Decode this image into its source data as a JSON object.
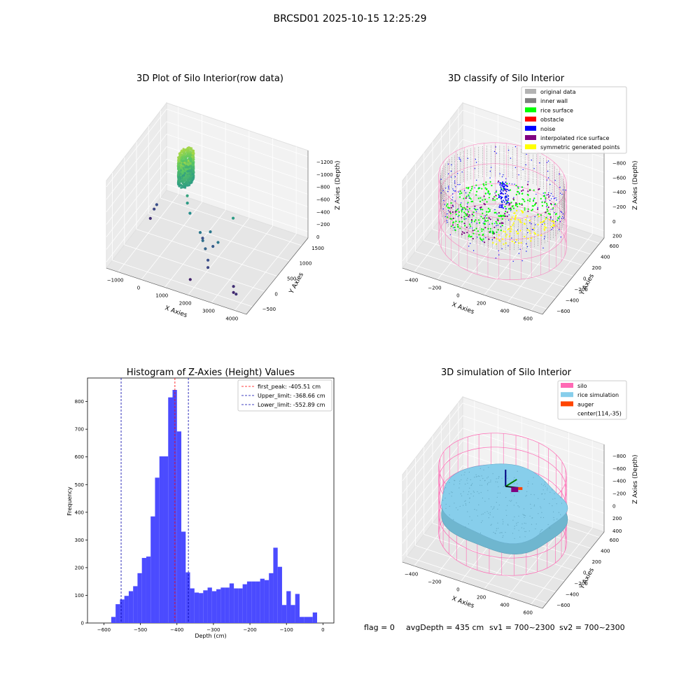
{
  "figure": {
    "suptitle": "BRCSD01 2025-10-15 12:25:29",
    "footer": {
      "flag": "flag = 0",
      "avg_depth": "avgDepth = 435 cm",
      "sv1": "sv1 = 700~2300",
      "sv2": "sv2 = 700~2300"
    }
  },
  "colors": {
    "hist_bar": "#4b4bff",
    "first_peak": "#ff0000",
    "limits": "#0000aa",
    "original": "#b3b3b3",
    "inner_wall": "#808080",
    "rice_surface": "#00ff00",
    "obstacle": "#ff0000",
    "noise": "#0000ff",
    "interpolated": "#800080",
    "symmetric": "#ffff00",
    "silo": "#ff69b4",
    "rice_sim": "#87ceeb",
    "auger": "#ff4500"
  },
  "chart_data": [
    {
      "type": "scatter",
      "projection": "3d",
      "title": "3D Plot of Silo Interior(row data)",
      "xlabel": "X Axies",
      "ylabel": "Y Axies",
      "zlabel": "Z Axies (Depth)",
      "x_ticks": [
        "−1000",
        "0",
        "1000",
        "2000",
        "3000",
        "4000"
      ],
      "y_ticks": [
        "−500",
        "0",
        "500",
        "1000",
        "1500"
      ],
      "z_ticks": [
        "0",
        "−200",
        "−400",
        "−600",
        "−800",
        "−1000",
        "−1200"
      ],
      "xlim": [
        -1200,
        4300
      ],
      "ylim": [
        -700,
        1700
      ],
      "zlim": [
        -1300,
        50
      ],
      "colormap": "viridis",
      "dense_cluster": "ring of several thousand points near x=0..500, y=800..1200, z=-200..-600",
      "outliers": [
        [
          600,
          700,
          -650
        ],
        [
          700,
          600,
          -700
        ],
        [
          900,
          500,
          -780
        ],
        [
          1500,
          300,
          -900
        ],
        [
          1700,
          200,
          -950
        ],
        [
          1900,
          100,
          -1000
        ],
        [
          2000,
          300,
          -1050
        ],
        [
          2100,
          0,
          -1100
        ],
        [
          2200,
          -100,
          -1150
        ],
        [
          1800,
          400,
          -900
        ],
        [
          2300,
          200,
          -900
        ],
        [
          1400,
          500,
          -1100
        ],
        [
          -900,
          900,
          -1150
        ],
        [
          -850,
          950,
          -1100
        ],
        [
          -950,
          800,
          -1250
        ],
        [
          3300,
          -200,
          -1250
        ],
        [
          3400,
          -300,
          -1280
        ],
        [
          3600,
          -400,
          -1230
        ],
        [
          1700,
          -300,
          -1300
        ],
        [
          2500,
          600,
          -700
        ]
      ]
    },
    {
      "type": "scatter",
      "projection": "3d",
      "title": "3D classify of Silo Interior",
      "xlabel": "X Axies",
      "ylabel": "Y Axies",
      "zlabel": "Z Axies (Depth)",
      "x_ticks": [
        "−400",
        "−200",
        "0",
        "200",
        "400",
        "600"
      ],
      "y_ticks": [
        "−600",
        "−400",
        "−200",
        "0",
        "200",
        "400",
        "600"
      ],
      "z_ticks": [
        "200",
        "0",
        "−200",
        "−400",
        "−600",
        "−800"
      ],
      "xlim": [
        -500,
        700
      ],
      "ylim": [
        -700,
        700
      ],
      "zlim": [
        -900,
        300
      ],
      "legend_position": "upper right",
      "legend": [
        {
          "label": "original data",
          "color": "#b3b3b3"
        },
        {
          "label": "inner wall",
          "color": "#808080"
        },
        {
          "label": "rice surface",
          "color": "#00ff00"
        },
        {
          "label": "obstacle",
          "color": "#ff0000"
        },
        {
          "label": "noise",
          "color": "#0000ff"
        },
        {
          "label": "interpolated rice surface",
          "color": "#800080"
        },
        {
          "label": "symmetric generated points",
          "color": "#ffff00"
        }
      ]
    },
    {
      "type": "bar",
      "title": "Histogram of Z-Axies (Height) Values",
      "xlabel": "Depth (cm)",
      "ylabel": "Frequency",
      "xlim": [
        -645,
        30
      ],
      "ylim": [
        0,
        885
      ],
      "x_ticks": [
        -600,
        -500,
        -400,
        -300,
        -200,
        -100,
        0
      ],
      "x_tick_labels": [
        "−600",
        "−500",
        "−400",
        "−300",
        "−200",
        "−100",
        "0"
      ],
      "y_ticks": [
        0,
        100,
        200,
        300,
        400,
        500,
        600,
        700,
        800
      ],
      "bin_start": -580,
      "bin_width": 12,
      "values": [
        22,
        68,
        85,
        98,
        115,
        133,
        180,
        235,
        240,
        385,
        525,
        602,
        602,
        815,
        842,
        692,
        330,
        183,
        125,
        110,
        108,
        118,
        128,
        115,
        122,
        128,
        128,
        143,
        125,
        125,
        140,
        150,
        150,
        150,
        160,
        155,
        180,
        272,
        203,
        65,
        115,
        65,
        105,
        22,
        22,
        22,
        38
      ],
      "vlines": [
        {
          "label": "first_peak: -405.51 cm",
          "x": -405.51,
          "color": "#ff0000"
        },
        {
          "label": "Upper_limit: -368.66 cm",
          "x": -368.66,
          "color": "#0000aa"
        },
        {
          "label": "Lower_limit: -552.89 cm",
          "x": -552.89,
          "color": "#0000aa"
        }
      ],
      "legend_position": "upper right"
    },
    {
      "type": "scatter",
      "projection": "3d",
      "title": "3D simulation of Silo Interior",
      "xlabel": "X Axies",
      "ylabel": "Y Axies",
      "zlabel": "Z Axies (Depth)",
      "x_ticks": [
        "−400",
        "−200",
        "0",
        "200",
        "400",
        "600"
      ],
      "y_ticks": [
        "−600",
        "−400",
        "−200",
        "0",
        "200",
        "400",
        "600"
      ],
      "z_ticks": [
        "400",
        "200",
        "0",
        "−200",
        "−400",
        "−600",
        "−800"
      ],
      "xlim": [
        -500,
        700
      ],
      "ylim": [
        -700,
        700
      ],
      "zlim": [
        -900,
        500
      ],
      "legend_position": "upper right",
      "legend": [
        {
          "label": "silo",
          "color": "#ff69b4"
        },
        {
          "label": "rice simulation",
          "color": "#87ceeb"
        },
        {
          "label": "auger",
          "color": "#ff4500"
        },
        {
          "label": "center(114,-35)",
          "color": ""
        }
      ]
    }
  ]
}
